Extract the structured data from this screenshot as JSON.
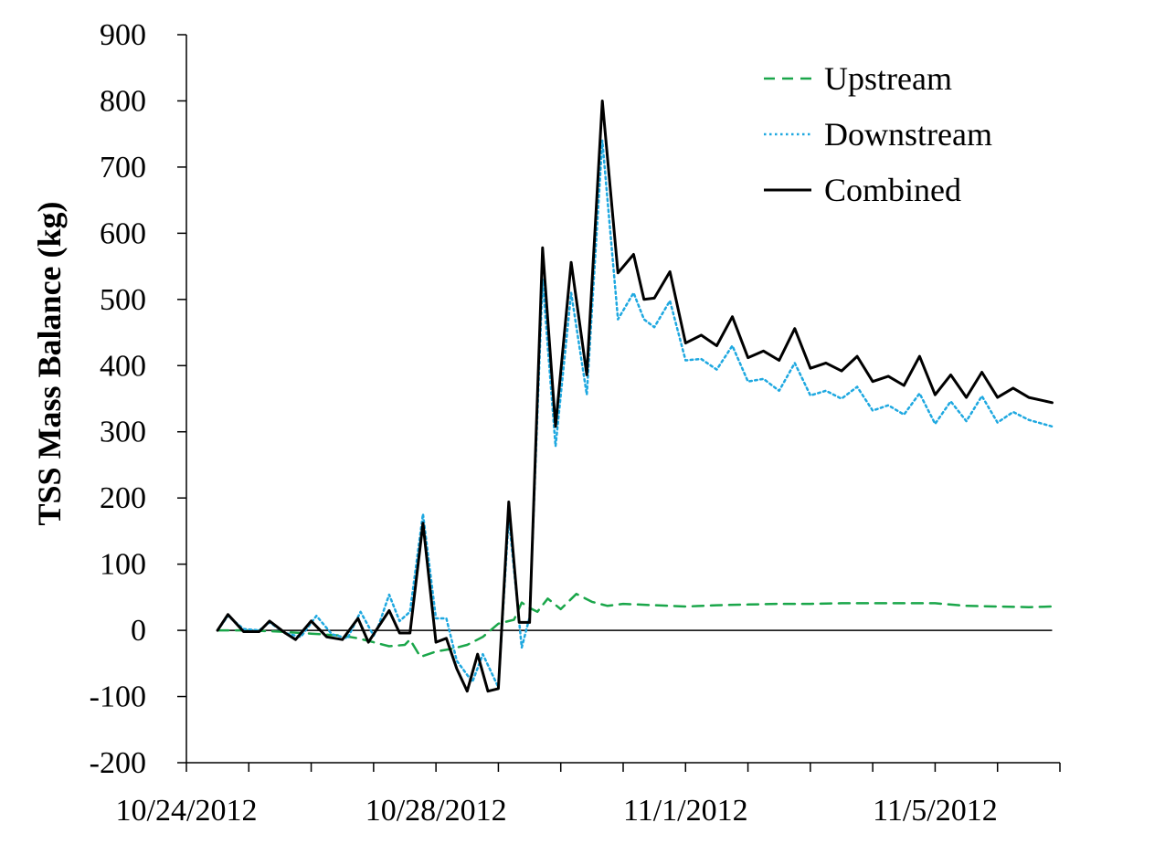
{
  "chart_data": {
    "type": "line",
    "title": "",
    "xlabel": "",
    "ylabel": "TSS Mass Balance (kg)",
    "ylim": [
      -200,
      900
    ],
    "yticks": [
      "900",
      "800",
      "700",
      "600",
      "500",
      "400",
      "300",
      "200",
      "100",
      "0",
      "-100",
      "-200"
    ],
    "xlim": [
      "10/24/2012",
      "11/7/2012"
    ],
    "xticks": [
      "10/24/2012",
      "10/28/2012",
      "11/1/2012",
      "11/5/2012"
    ],
    "grid": false,
    "legend_position": "top-right",
    "series": [
      {
        "name": "Upstream",
        "style": "dashed",
        "color": "#1aa64a",
        "points": [
          [
            "10/24/2012 12:00",
            0
          ],
          [
            "10/25/2012 00:00",
            0
          ],
          [
            "10/25/2012 12:00",
            -2
          ],
          [
            "10/26/2012 00:00",
            -5
          ],
          [
            "10/26/2012 12:00",
            -8
          ],
          [
            "10/26/2012 18:00",
            -12
          ],
          [
            "10/27/2012 00:00",
            -18
          ],
          [
            "10/27/2012 06:00",
            -24
          ],
          [
            "10/27/2012 12:00",
            -22
          ],
          [
            "10/27/2012 14:00",
            -14
          ],
          [
            "10/27/2012 18:00",
            -40
          ],
          [
            "10/28/2012 00:00",
            -32
          ],
          [
            "10/28/2012 06:00",
            -28
          ],
          [
            "10/28/2012 12:00",
            -22
          ],
          [
            "10/28/2012 18:00",
            -10
          ],
          [
            "10/29/2012 00:00",
            10
          ],
          [
            "10/29/2012 06:00",
            16
          ],
          [
            "10/29/2012 09:00",
            42
          ],
          [
            "10/29/2012 12:00",
            34
          ],
          [
            "10/29/2012 15:00",
            28
          ],
          [
            "10/29/2012 19:00",
            48
          ],
          [
            "10/30/2012 00:00",
            32
          ],
          [
            "10/30/2012 06:00",
            55
          ],
          [
            "10/30/2012 12:00",
            43
          ],
          [
            "10/30/2012 18:00",
            37
          ],
          [
            "10/31/2012 00:00",
            40
          ],
          [
            "10/31/2012 12:00",
            38
          ],
          [
            "11/1/2012 00:00",
            36
          ],
          [
            "11/1/2012 12:00",
            38
          ],
          [
            "11/2/2012 00:00",
            39
          ],
          [
            "11/2/2012 12:00",
            40
          ],
          [
            "11/3/2012 00:00",
            40
          ],
          [
            "11/3/2012 12:00",
            41
          ],
          [
            "11/4/2012 00:00",
            41
          ],
          [
            "11/4/2012 12:00",
            41
          ],
          [
            "11/5/2012 00:00",
            41
          ],
          [
            "11/5/2012 12:00",
            37
          ],
          [
            "11/6/2012 00:00",
            36
          ],
          [
            "11/6/2012 12:00",
            35
          ],
          [
            "11/6/2012 21:00",
            36
          ]
        ]
      },
      {
        "name": "Downstream",
        "style": "dotted",
        "color": "#1ea8e0",
        "points": [
          [
            "10/24/2012 12:00",
            0
          ],
          [
            "10/24/2012 16:00",
            22
          ],
          [
            "10/24/2012 22:00",
            2
          ],
          [
            "10/25/2012 04:00",
            0
          ],
          [
            "10/25/2012 08:00",
            12
          ],
          [
            "10/25/2012 14:00",
            -4
          ],
          [
            "10/25/2012 20:00",
            -10
          ],
          [
            "10/26/2012 02:00",
            22
          ],
          [
            "10/26/2012 08:00",
            -6
          ],
          [
            "10/26/2012 14:00",
            -12
          ],
          [
            "10/26/2012 19:00",
            28
          ],
          [
            "10/27/2012 00:00",
            -8
          ],
          [
            "10/27/2012 02:00",
            8
          ],
          [
            "10/27/2012 06:00",
            54
          ],
          [
            "10/27/2012 10:00",
            14
          ],
          [
            "10/27/2012 14:00",
            28
          ],
          [
            "10/27/2012 19:00",
            176
          ],
          [
            "10/28/2012 00:00",
            18
          ],
          [
            "10/28/2012 04:00",
            18
          ],
          [
            "10/28/2012 08:00",
            -46
          ],
          [
            "10/28/2012 14:00",
            -78
          ],
          [
            "10/28/2012 18:00",
            -36
          ],
          [
            "10/29/2012 00:00",
            -86
          ],
          [
            "10/29/2012 04:00",
            172
          ],
          [
            "10/29/2012 09:00",
            -26
          ],
          [
            "10/29/2012 12:00",
            20
          ],
          [
            "10/29/2012 17:00",
            530
          ],
          [
            "10/29/2012 22:00",
            278
          ],
          [
            "10/30/2012 04:00",
            510
          ],
          [
            "10/30/2012 10:00",
            356
          ],
          [
            "10/30/2012 16:00",
            740
          ],
          [
            "10/30/2012 22:00",
            470
          ],
          [
            "10/31/2012 04:00",
            510
          ],
          [
            "10/31/2012 08:00",
            470
          ],
          [
            "10/31/2012 12:00",
            458
          ],
          [
            "10/31/2012 18:00",
            498
          ],
          [
            "11/1/2012 00:00",
            408
          ],
          [
            "11/1/2012 06:00",
            410
          ],
          [
            "11/1/2012 12:00",
            394
          ],
          [
            "11/1/2012 18:00",
            430
          ],
          [
            "11/2/2012 00:00",
            376
          ],
          [
            "11/2/2012 06:00",
            380
          ],
          [
            "11/2/2012 12:00",
            362
          ],
          [
            "11/2/2012 18:00",
            404
          ],
          [
            "11/3/2012 00:00",
            355
          ],
          [
            "11/3/2012 06:00",
            362
          ],
          [
            "11/3/2012 12:00",
            350
          ],
          [
            "11/3/2012 18:00",
            368
          ],
          [
            "11/4/2012 00:00",
            332
          ],
          [
            "11/4/2012 06:00",
            340
          ],
          [
            "11/4/2012 12:00",
            326
          ],
          [
            "11/4/2012 18:00",
            358
          ],
          [
            "11/5/2012 00:00",
            312
          ],
          [
            "11/5/2012 06:00",
            346
          ],
          [
            "11/5/2012 12:00",
            316
          ],
          [
            "11/5/2012 18:00",
            354
          ],
          [
            "11/6/2012 00:00",
            314
          ],
          [
            "11/6/2012 06:00",
            330
          ],
          [
            "11/6/2012 12:00",
            318
          ],
          [
            "11/6/2012 21:00",
            308
          ]
        ]
      },
      {
        "name": "Combined",
        "style": "solid",
        "color": "#000000",
        "points": [
          [
            "10/24/2012 12:00",
            0
          ],
          [
            "10/24/2012 16:00",
            24
          ],
          [
            "10/24/2012 22:00",
            -2
          ],
          [
            "10/25/2012 04:00",
            -2
          ],
          [
            "10/25/2012 08:00",
            14
          ],
          [
            "10/25/2012 14:00",
            -4
          ],
          [
            "10/25/2012 18:00",
            -14
          ],
          [
            "10/26/2012 00:00",
            14
          ],
          [
            "10/26/2012 06:00",
            -10
          ],
          [
            "10/26/2012 12:00",
            -14
          ],
          [
            "10/26/2012 18:00",
            18
          ],
          [
            "10/26/2012 22:00",
            -18
          ],
          [
            "10/27/2012 02:00",
            6
          ],
          [
            "10/27/2012 06:00",
            30
          ],
          [
            "10/27/2012 10:00",
            -4
          ],
          [
            "10/27/2012 14:00",
            -4
          ],
          [
            "10/27/2012 19:00",
            162
          ],
          [
            "10/28/2012 00:00",
            -18
          ],
          [
            "10/28/2012 04:00",
            -12
          ],
          [
            "10/28/2012 08:00",
            -58
          ],
          [
            "10/28/2012 12:00",
            -92
          ],
          [
            "10/28/2012 16:00",
            -36
          ],
          [
            "10/28/2012 20:00",
            -92
          ],
          [
            "10/29/2012 00:00",
            -88
          ],
          [
            "10/29/2012 04:00",
            194
          ],
          [
            "10/29/2012 08:00",
            12
          ],
          [
            "10/29/2012 12:00",
            12
          ],
          [
            "10/29/2012 17:00",
            578
          ],
          [
            "10/29/2012 22:00",
            308
          ],
          [
            "10/30/2012 04:00",
            556
          ],
          [
            "10/30/2012 10:00",
            386
          ],
          [
            "10/30/2012 16:00",
            800
          ],
          [
            "10/30/2012 22:00",
            540
          ],
          [
            "10/31/2012 04:00",
            568
          ],
          [
            "10/31/2012 08:00",
            500
          ],
          [
            "10/31/2012 12:00",
            502
          ],
          [
            "10/31/2012 18:00",
            542
          ],
          [
            "11/1/2012 00:00",
            434
          ],
          [
            "11/1/2012 06:00",
            446
          ],
          [
            "11/1/2012 12:00",
            430
          ],
          [
            "11/1/2012 18:00",
            474
          ],
          [
            "11/2/2012 00:00",
            412
          ],
          [
            "11/2/2012 06:00",
            422
          ],
          [
            "11/2/2012 12:00",
            408
          ],
          [
            "11/2/2012 18:00",
            456
          ],
          [
            "11/3/2012 00:00",
            396
          ],
          [
            "11/3/2012 06:00",
            404
          ],
          [
            "11/3/2012 12:00",
            392
          ],
          [
            "11/3/2012 18:00",
            414
          ],
          [
            "11/4/2012 00:00",
            376
          ],
          [
            "11/4/2012 06:00",
            384
          ],
          [
            "11/4/2012 12:00",
            370
          ],
          [
            "11/4/2012 18:00",
            414
          ],
          [
            "11/5/2012 00:00",
            356
          ],
          [
            "11/5/2012 06:00",
            386
          ],
          [
            "11/5/2012 12:00",
            352
          ],
          [
            "11/5/2012 18:00",
            390
          ],
          [
            "11/6/2012 00:00",
            352
          ],
          [
            "11/6/2012 06:00",
            366
          ],
          [
            "11/6/2012 12:00",
            352
          ],
          [
            "11/6/2012 21:00",
            344
          ]
        ]
      }
    ]
  }
}
